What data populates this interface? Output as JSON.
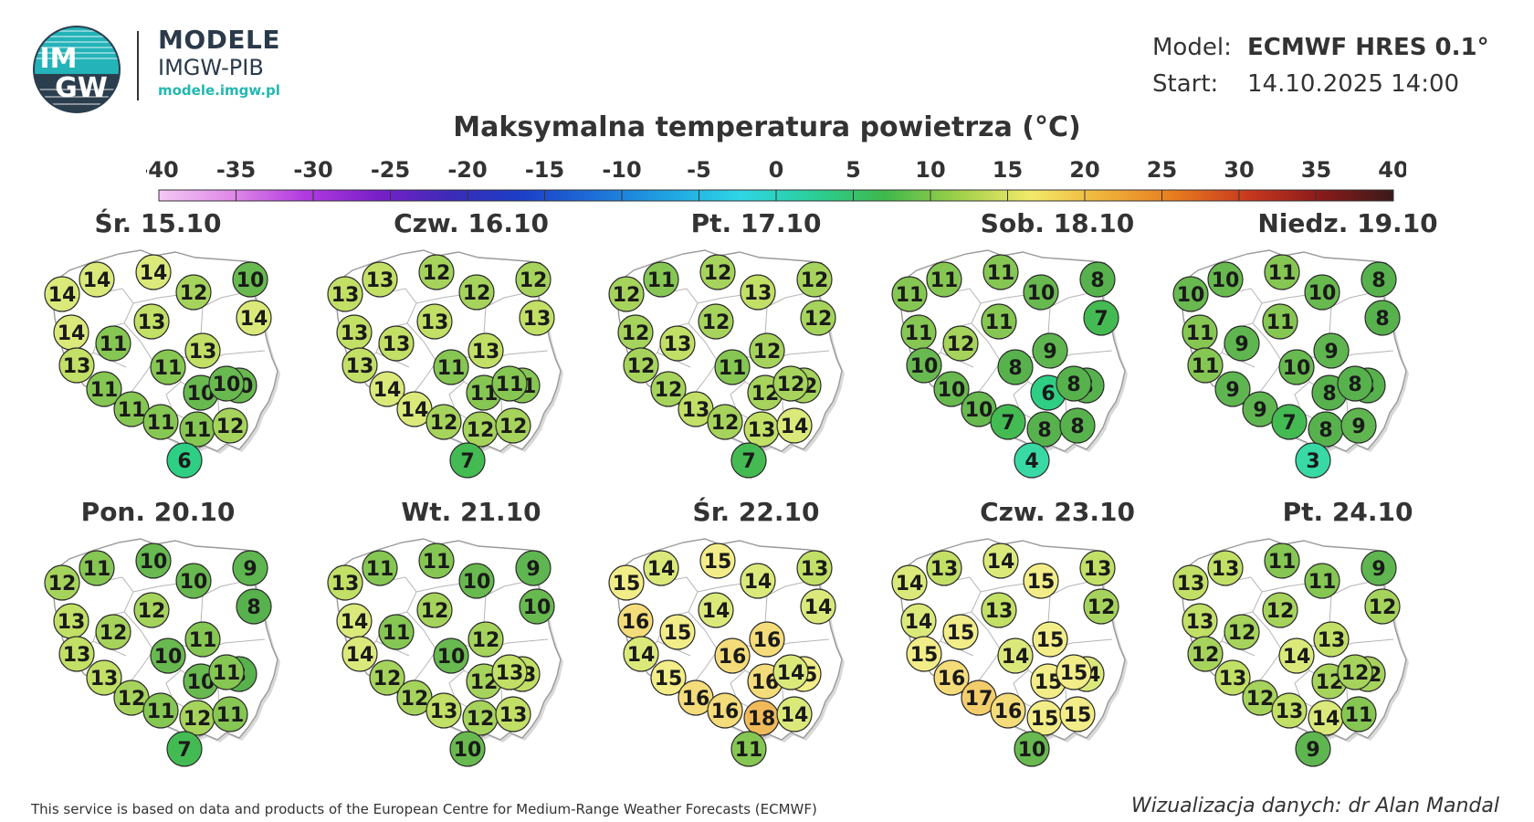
{
  "header": {
    "logo_text_top": "IM",
    "logo_text_bottom": "GW",
    "brand_line1": "MODELE",
    "brand_line2": "IMGW-PIB",
    "brand_url": "modele.imgw.pl",
    "model_label": "Model:",
    "model_value": "ECMWF HRES 0.1°",
    "start_label": "Start:",
    "start_value": "14.10.2025 14:00",
    "title": "Maksymalna temperatura powietrza (°C)"
  },
  "legend": {
    "ticks": [
      "-40",
      "-35",
      "-30",
      "-25",
      "-20",
      "-15",
      "-10",
      "-5",
      "0",
      "5",
      "10",
      "15",
      "20",
      "25",
      "30",
      "35",
      "40"
    ],
    "colors": [
      "#f4c8f4",
      "#e08ae8",
      "#b23be0",
      "#7a1fc9",
      "#3c2bb8",
      "#1b3fc8",
      "#1d6fd8",
      "#1fa3e2",
      "#2fd6e6",
      "#2bcf9a",
      "#3fb84a",
      "#9fd04a",
      "#f2ea6a",
      "#f0b23a",
      "#e87a1e",
      "#c8381e",
      "#8a1a1a",
      "#3a1a1a"
    ]
  },
  "colors": {
    "t3": "#39d9a6",
    "t4": "#39d9a6",
    "t6": "#2ecf84",
    "t7": "#44bb52",
    "t8": "#57b24d",
    "t9": "#5fb650",
    "t10": "#68b94f",
    "t11": "#86c653",
    "t12": "#a6d35c",
    "t13": "#c2df66",
    "t14": "#dbe97a",
    "t15": "#f2ed88",
    "t16": "#f4dc7a",
    "t17": "#f3cd6c",
    "t18": "#f0ba5a"
  },
  "days": [
    {
      "label": "Śr. 15.10",
      "temps": [
        14,
        14,
        14,
        12,
        10,
        14,
        13,
        11,
        14,
        13,
        13,
        11,
        10,
        11,
        10,
        11,
        11,
        11,
        12,
        10,
        6
      ]
    },
    {
      "label": "Czw. 16.10",
      "temps": [
        13,
        13,
        12,
        12,
        12,
        13,
        13,
        13,
        13,
        13,
        13,
        11,
        11,
        14,
        11,
        14,
        12,
        12,
        12,
        11,
        7
      ]
    },
    {
      "label": "Pt. 17.10",
      "temps": [
        12,
        11,
        12,
        13,
        12,
        12,
        12,
        13,
        12,
        12,
        12,
        11,
        12,
        12,
        12,
        13,
        12,
        13,
        14,
        12,
        7
      ]
    },
    {
      "label": "Sob. 18.10",
      "temps": [
        11,
        11,
        11,
        10,
        8,
        11,
        11,
        12,
        7,
        10,
        9,
        8,
        8,
        10,
        6,
        10,
        7,
        8,
        8,
        8,
        4
      ]
    },
    {
      "label": "Niedz. 19.10",
      "temps": [
        10,
        10,
        11,
        10,
        8,
        11,
        11,
        9,
        8,
        11,
        9,
        10,
        8,
        9,
        8,
        9,
        7,
        8,
        9,
        8,
        3
      ]
    },
    {
      "label": "Pon. 20.10",
      "temps": [
        12,
        11,
        10,
        10,
        9,
        13,
        12,
        12,
        8,
        13,
        11,
        10,
        8,
        13,
        10,
        12,
        11,
        12,
        11,
        11,
        7
      ]
    },
    {
      "label": "Wt. 21.10",
      "temps": [
        13,
        11,
        11,
        10,
        9,
        14,
        12,
        11,
        10,
        14,
        12,
        10,
        13,
        12,
        12,
        12,
        13,
        12,
        13,
        13,
        10
      ]
    },
    {
      "label": "Śr. 22.10",
      "temps": [
        15,
        14,
        15,
        14,
        13,
        16,
        14,
        15,
        14,
        14,
        16,
        16,
        15,
        15,
        16,
        16,
        16,
        18,
        14,
        14,
        11
      ]
    },
    {
      "label": "Czw. 23.10",
      "temps": [
        14,
        13,
        14,
        15,
        13,
        14,
        13,
        15,
        12,
        15,
        15,
        14,
        14,
        16,
        15,
        17,
        16,
        15,
        15,
        15,
        10
      ]
    },
    {
      "label": "Pt. 24.10",
      "temps": [
        13,
        13,
        11,
        11,
        9,
        13,
        12,
        12,
        12,
        12,
        13,
        14,
        12,
        13,
        12,
        12,
        13,
        14,
        11,
        12,
        9
      ]
    }
  ],
  "footer": {
    "source": "This service is based on data and products of the European Centre for Medium-Range Weather Forecasts (ECMWF)",
    "credit": "Wizualizacja danych: dr Alan Mandal"
  }
}
